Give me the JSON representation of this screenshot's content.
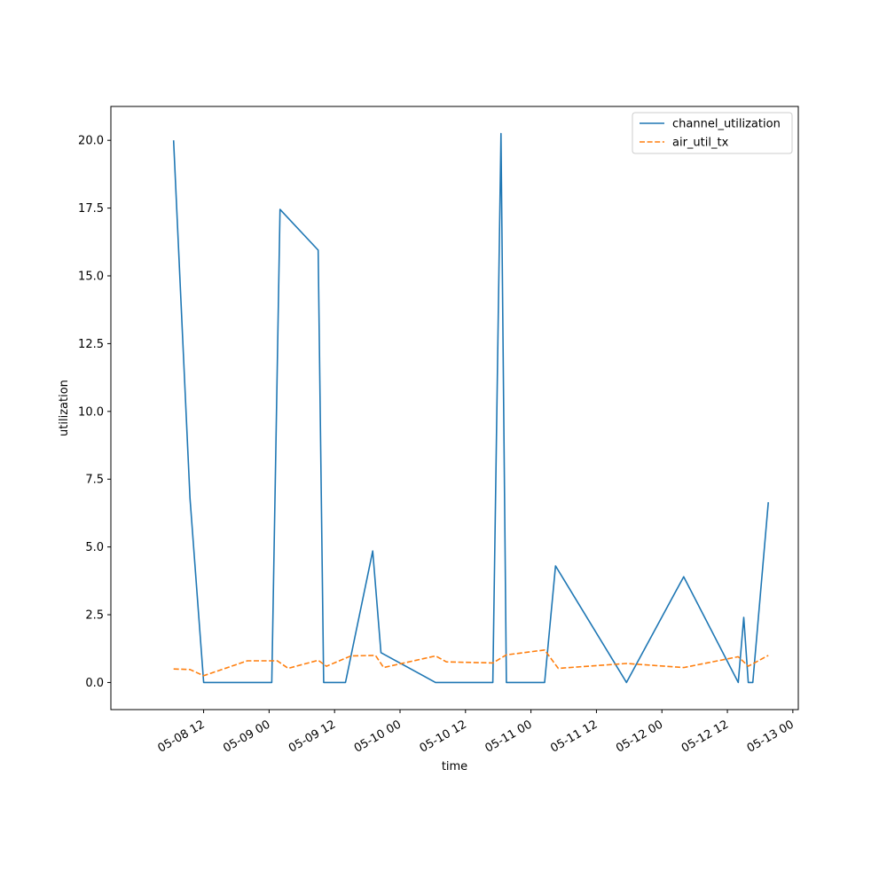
{
  "chart_data": {
    "type": "line",
    "title": "",
    "xlabel": "time",
    "ylabel": "utilization",
    "x_unit": "datetime",
    "xlim": [
      "2024-05-07T19:00",
      "2024-05-13T01:00"
    ],
    "ylim": [
      -1.0,
      21.25
    ],
    "x_ticks": [
      {
        "label": "05-08 12",
        "t": "2024-05-08T12:00"
      },
      {
        "label": "05-09 00",
        "t": "2024-05-09T00:00"
      },
      {
        "label": "05-09 12",
        "t": "2024-05-09T12:00"
      },
      {
        "label": "05-10 00",
        "t": "2024-05-10T00:00"
      },
      {
        "label": "05-10 12",
        "t": "2024-05-10T12:00"
      },
      {
        "label": "05-11 00",
        "t": "2024-05-11T00:00"
      },
      {
        "label": "05-11 12",
        "t": "2024-05-11T12:00"
      },
      {
        "label": "05-12 00",
        "t": "2024-05-12T00:00"
      },
      {
        "label": "05-12 12",
        "t": "2024-05-12T12:00"
      },
      {
        "label": "05-13 00",
        "t": "2024-05-13T00:00"
      }
    ],
    "y_ticks": [
      "0.0",
      "2.5",
      "5.0",
      "7.5",
      "10.0",
      "12.5",
      "15.0",
      "17.5",
      "20.0"
    ],
    "grid": false,
    "legend_position": "top-right",
    "series": [
      {
        "name": "channel_utilization",
        "color": "#1f77b4",
        "dash": "solid",
        "points": [
          [
            "2024-05-08T06:30",
            20.0
          ],
          [
            "2024-05-08T09:30",
            6.8
          ],
          [
            "2024-05-08T12:00",
            0.0
          ],
          [
            "2024-05-08T18:00",
            0.0
          ],
          [
            "2024-05-09T00:30",
            0.0
          ],
          [
            "2024-05-09T02:00",
            17.45
          ],
          [
            "2024-05-09T09:00",
            15.95
          ],
          [
            "2024-05-09T10:00",
            0.0
          ],
          [
            "2024-05-09T14:00",
            0.0
          ],
          [
            "2024-05-09T19:00",
            4.85
          ],
          [
            "2024-05-09T20:30",
            1.1
          ],
          [
            "2024-05-10T06:30",
            0.0
          ],
          [
            "2024-05-10T12:00",
            0.0
          ],
          [
            "2024-05-10T17:00",
            0.0
          ],
          [
            "2024-05-10T18:30",
            20.25
          ],
          [
            "2024-05-10T19:30",
            0.0
          ],
          [
            "2024-05-11T02:30",
            0.0
          ],
          [
            "2024-05-11T04:30",
            4.3
          ],
          [
            "2024-05-11T17:30",
            0.0
          ],
          [
            "2024-05-12T04:00",
            3.9
          ],
          [
            "2024-05-12T14:00",
            0.0
          ],
          [
            "2024-05-12T15:00",
            2.4
          ],
          [
            "2024-05-12T15:50",
            0.0
          ],
          [
            "2024-05-12T16:40",
            0.0
          ],
          [
            "2024-05-12T19:30",
            6.65
          ]
        ]
      },
      {
        "name": "air_util_tx",
        "color": "#ff7f0e",
        "dash": "dashed",
        "points": [
          [
            "2024-05-08T06:30",
            0.5
          ],
          [
            "2024-05-08T09:30",
            0.48
          ],
          [
            "2024-05-08T12:00",
            0.25
          ],
          [
            "2024-05-08T20:00",
            0.8
          ],
          [
            "2024-05-09T01:30",
            0.8
          ],
          [
            "2024-05-09T03:30",
            0.52
          ],
          [
            "2024-05-09T09:00",
            0.82
          ],
          [
            "2024-05-09T10:30",
            0.6
          ],
          [
            "2024-05-09T15:00",
            0.98
          ],
          [
            "2024-05-09T19:30",
            1.0
          ],
          [
            "2024-05-09T21:00",
            0.55
          ],
          [
            "2024-05-10T06:30",
            0.98
          ],
          [
            "2024-05-10T08:30",
            0.76
          ],
          [
            "2024-05-10T17:00",
            0.72
          ],
          [
            "2024-05-10T19:30",
            1.02
          ],
          [
            "2024-05-11T02:30",
            1.2
          ],
          [
            "2024-05-11T05:00",
            0.52
          ],
          [
            "2024-05-11T17:30",
            0.7
          ],
          [
            "2024-05-12T04:00",
            0.55
          ],
          [
            "2024-05-12T14:00",
            0.95
          ],
          [
            "2024-05-12T15:50",
            0.6
          ],
          [
            "2024-05-12T19:30",
            1.0
          ]
        ]
      }
    ]
  }
}
